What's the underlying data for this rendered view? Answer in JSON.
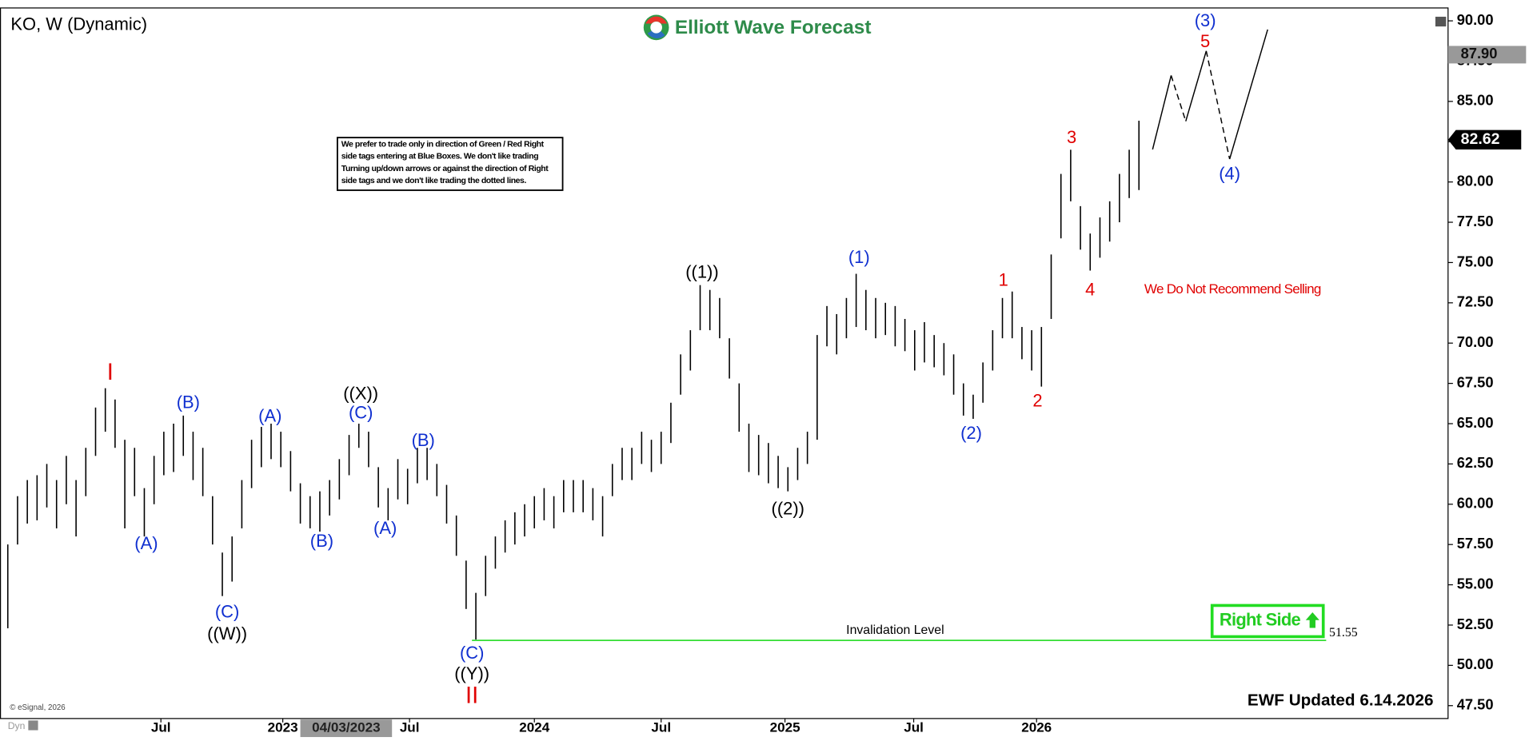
{
  "chart_data": {
    "type": "ohlc",
    "title": "KO, W (Dynamic)",
    "brand": "Elliott Wave Forecast",
    "note": [
      "We prefer to trade only in direction of Green / Red Right",
      "side tags entering at Blue Boxes. We don't like trading",
      "Turning up/down arrows or against the direction of Right",
      "side tags and we don't like trading the dotted lines."
    ],
    "warning": "We Do Not Recommend Selling",
    "right_side": "Right Side",
    "updated": "EWF Updated 6.14.2026",
    "copyright": "© eSignal, 2026",
    "mode": "Dyn",
    "color": "#000000",
    "low": [
      52.3,
      57.5,
      58.8,
      59,
      59.8,
      58.5,
      60,
      58,
      60.5,
      63,
      64.5,
      63.5,
      58.5,
      60.5,
      58,
      60,
      61.8,
      62,
      63,
      61.5,
      60.5,
      57.5,
      54.3,
      55.2,
      58.5,
      61,
      62.3,
      62.8,
      62.3,
      60.8,
      58.8,
      58.5,
      58.3,
      59.3,
      60.3,
      61.8,
      63.5,
      62.3,
      59.8,
      59,
      60.3,
      60,
      61.3,
      61.5,
      60.5,
      58.8,
      56.8,
      53.5,
      51.6,
      54.3,
      56,
      57,
      57.5,
      58,
      58.5,
      59,
      58.5,
      59.5,
      59.5,
      59.5,
      59,
      58,
      60.5,
      61.5,
      61.5,
      62.5,
      62,
      62.5,
      63.8,
      66.8,
      68.3,
      70.8,
      70.8,
      70.3,
      67.8,
      64.5,
      62,
      61.8,
      61.3,
      61,
      60.8,
      61.5,
      62.5,
      64,
      69.8,
      69.3,
      70.3,
      71,
      70.8,
      70.3,
      70.5,
      69.8,
      69.5,
      68.3,
      68.8,
      68.5,
      68,
      66.8,
      65.5,
      65.3,
      66.3,
      68.3,
      70.3,
      70.3,
      69,
      68.3,
      67.3,
      71.5,
      76.5,
      78.8,
      75.8,
      74.5,
      75.3,
      76.3,
      77.5,
      79,
      79.5
    ],
    "high": [
      57.5,
      60.5,
      61.5,
      61.8,
      62.5,
      61.5,
      63,
      61.5,
      63.5,
      66,
      67.2,
      66.5,
      64,
      63.5,
      61,
      63,
      64.5,
      65,
      65.5,
      64.5,
      63.5,
      60.5,
      57,
      58,
      61.5,
      64,
      64.8,
      65,
      64.5,
      63.3,
      61.3,
      60.5,
      60.8,
      61.5,
      62.8,
      64.3,
      65,
      64.5,
      62.3,
      61,
      62.8,
      62.2,
      63.5,
      63.5,
      62.5,
      61.2,
      59.3,
      56.5,
      54.5,
      56.8,
      58,
      59,
      59.5,
      60,
      60.5,
      61,
      60.5,
      61.5,
      61.5,
      61.5,
      61,
      60.5,
      62.5,
      63.5,
      63.5,
      64.5,
      64,
      64.5,
      66.3,
      69.3,
      70.8,
      73.6,
      73.3,
      72.8,
      70.3,
      67.5,
      65,
      64.3,
      63.8,
      63,
      62.3,
      63.5,
      64.5,
      70.5,
      72.3,
      71.8,
      72.8,
      74.3,
      73.3,
      72.8,
      72.5,
      72.3,
      71.5,
      70.8,
      71.3,
      70.5,
      70,
      69.3,
      67.5,
      66.8,
      68.8,
      70.8,
      72.8,
      73.2,
      71,
      70.8,
      71,
      75.5,
      80.5,
      82,
      78.5,
      76.8,
      77.8,
      78.8,
      80.5,
      82,
      83.8
    ],
    "xlim": [
      -0.8,
      147.7
    ],
    "xticks": [
      {
        "value": 15.7,
        "label": "Jul"
      },
      {
        "value": 28.2,
        "label": "2023"
      },
      {
        "value": 41.2,
        "label": "Jul"
      },
      {
        "value": 54,
        "label": "2024"
      },
      {
        "value": 67,
        "label": "Jul"
      },
      {
        "value": 79.7,
        "label": "2025"
      },
      {
        "value": 92.9,
        "label": "Jul"
      },
      {
        "value": 105.5,
        "label": "2026"
      }
    ],
    "crosshair": {
      "value": 34.7,
      "label": "04/03/2023"
    },
    "ylim": [
      46.7,
      90.8
    ],
    "yticks": [
      {
        "value": 47.5,
        "label": "47.50"
      },
      {
        "value": 50,
        "label": "50.00"
      },
      {
        "value": 52.5,
        "label": "52.50"
      },
      {
        "value": 55,
        "label": "55.00"
      },
      {
        "value": 57.5,
        "label": "57.50"
      },
      {
        "value": 60,
        "label": "60.00"
      },
      {
        "value": 62.5,
        "label": "62.50"
      },
      {
        "value": 65,
        "label": "65.00"
      },
      {
        "value": 67.5,
        "label": "67.50"
      },
      {
        "value": 70,
        "label": "70.00"
      },
      {
        "value": 72.5,
        "label": "72.50"
      },
      {
        "value": 75,
        "label": "75.00"
      },
      {
        "value": 77.5,
        "label": "77.50"
      },
      {
        "value": 80,
        "label": "80.00"
      },
      {
        "value": 82.5,
        "label": "82.50"
      },
      {
        "value": 85,
        "label": "85.00"
      },
      {
        "value": 87.5,
        "label": "87.50"
      },
      {
        "value": 90,
        "label": "90.00"
      }
    ],
    "last_price": 82.62,
    "level_tag": {
      "value": 87.9,
      "label": "87.90"
    },
    "invalidation": {
      "label": "Invalidation Level",
      "value": 51.55,
      "x": [
        47.6,
        135.2
      ],
      "color": "#33dd33"
    },
    "projection": {
      "x": [
        117.4,
        119.3,
        120.8,
        122.9,
        125.3,
        129.2
      ],
      "values": [
        82.02,
        86.61,
        83.77,
        88.13,
        81.42,
        89.46
      ],
      "dashed": [
        false,
        true,
        false,
        true,
        false
      ]
    },
    "waves": [
      {
        "text": "I",
        "color": "#e00000",
        "x": 10.5,
        "y": 68.1
      },
      {
        "text": "(A)",
        "color": "#1030d0",
        "x": 14.2,
        "y": 57.5
      },
      {
        "text": "(B)",
        "color": "#1030d0",
        "x": 18.5,
        "y": 66.25
      },
      {
        "text": "(C)",
        "color": "#1030d0",
        "x": 22.5,
        "y": 53.25
      },
      {
        "text": "((W))",
        "color": "#000000",
        "x": 22.5,
        "y": 51.9
      },
      {
        "text": "(A)",
        "color": "#1030d0",
        "x": 26.9,
        "y": 65.4
      },
      {
        "text": "(B)",
        "color": "#1030d0",
        "x": 32.2,
        "y": 57.65
      },
      {
        "text": "((X))",
        "color": "#000000",
        "x": 36.2,
        "y": 66.8
      },
      {
        "text": "(C)",
        "color": "#1030d0",
        "x": 36.2,
        "y": 65.6
      },
      {
        "text": "(A)",
        "color": "#1030d0",
        "x": 38.7,
        "y": 58.45
      },
      {
        "text": "(B)",
        "color": "#1030d0",
        "x": 42.6,
        "y": 63.9
      },
      {
        "text": "(C)",
        "color": "#1030d0",
        "x": 47.6,
        "y": 50.7
      },
      {
        "text": "((Y))",
        "color": "#000000",
        "x": 47.6,
        "y": 49.4
      },
      {
        "text": "II",
        "color": "#e00000",
        "x": 47.6,
        "y": 48.05
      },
      {
        "text": "((1))",
        "color": "#000000",
        "x": 71.2,
        "y": 74.35
      },
      {
        "text": "((2))",
        "color": "#000000",
        "x": 80,
        "y": 59.65
      },
      {
        "text": "(1)",
        "color": "#1030d0",
        "x": 87.3,
        "y": 75.25
      },
      {
        "text": "(2)",
        "color": "#1030d0",
        "x": 98.8,
        "y": 64.35
      },
      {
        "text": "1",
        "color": "#e00000",
        "x": 102.1,
        "y": 73.85
      },
      {
        "text": "2",
        "color": "#e00000",
        "x": 105.6,
        "y": 66.35
      },
      {
        "text": "3",
        "color": "#e00000",
        "x": 109.1,
        "y": 82.7
      },
      {
        "text": "4",
        "color": "#e00000",
        "x": 111,
        "y": 73.25
      },
      {
        "text": "(3)",
        "color": "#1030d0",
        "x": 122.8,
        "y": 89.95
      },
      {
        "text": "5",
        "color": "#e00000",
        "x": 122.8,
        "y": 88.65
      },
      {
        "text": "(4)",
        "color": "#1030d0",
        "x": 125.3,
        "y": 80.45
      }
    ]
  }
}
